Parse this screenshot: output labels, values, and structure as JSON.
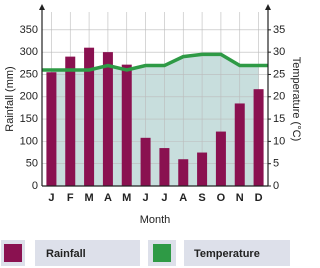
{
  "chart_data": {
    "type": "climate",
    "x_label": "Month",
    "y_label": "Rainfall (mm)",
    "y2_label": "Temperature (°C)",
    "categories": [
      "J",
      "F",
      "M",
      "A",
      "M",
      "J",
      "J",
      "A",
      "S",
      "O",
      "N",
      "D"
    ],
    "series": [
      {
        "name": "Rainfall",
        "color": "#8a1150",
        "values": [
          255,
          290,
          310,
          300,
          272,
          108,
          85,
          60,
          75,
          122,
          185,
          217
        ]
      },
      {
        "name": "Temperature",
        "color": "#2e9a45",
        "axis": "y2",
        "values": [
          26,
          26,
          26,
          27,
          26,
          27,
          27,
          29,
          29.5,
          29.5,
          27,
          27
        ]
      }
    ],
    "ylim": [
      0,
      390
    ],
    "yticks": [
      0,
      50,
      100,
      150,
      200,
      250,
      300,
      350
    ],
    "y2lim": [
      0,
      39
    ],
    "y2ticks": [
      0,
      5,
      10,
      15,
      20,
      25,
      30,
      35
    ],
    "grid": true
  }
}
